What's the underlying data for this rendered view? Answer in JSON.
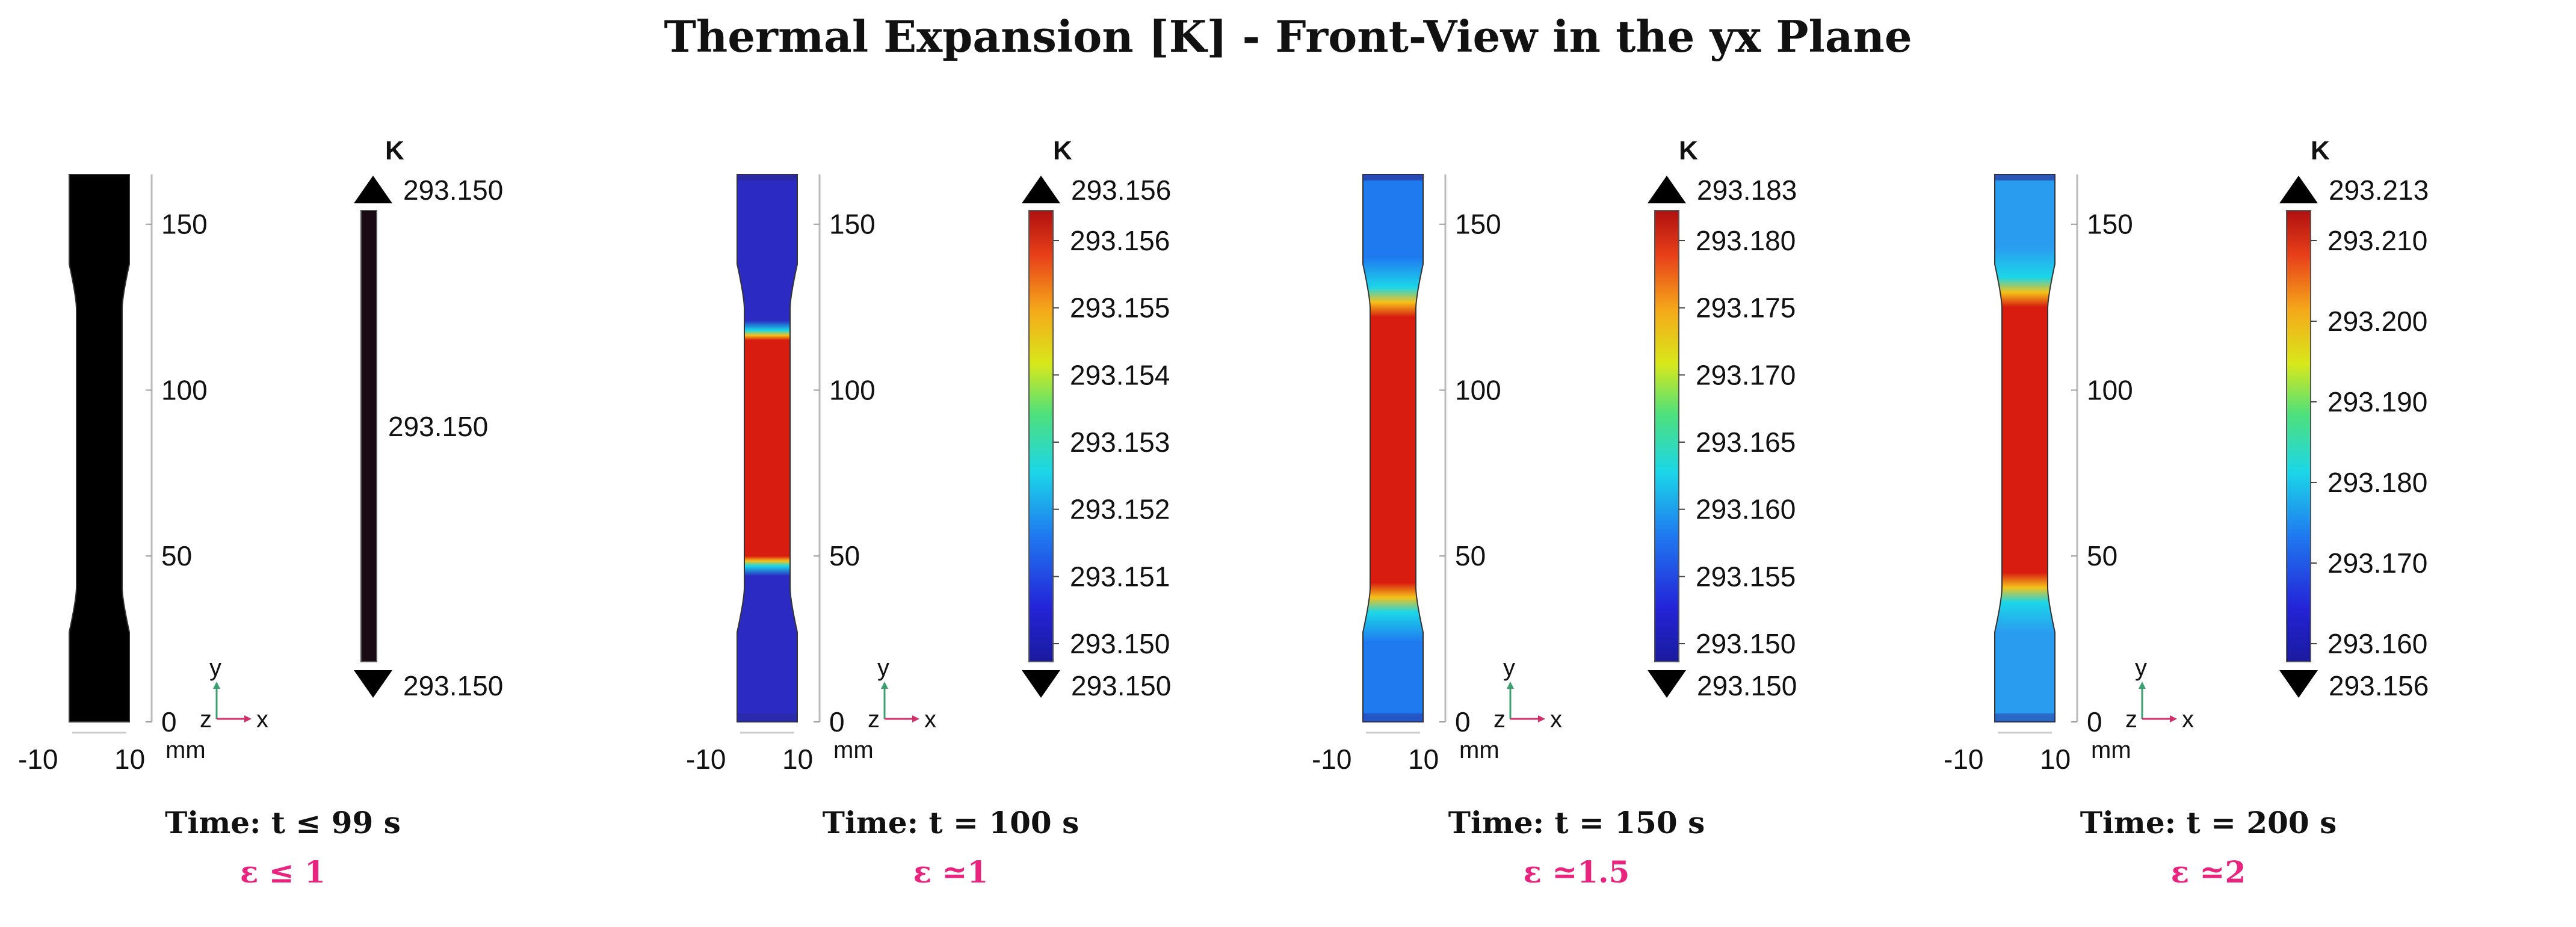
{
  "title": "Thermal Expansion [K] - Front-View in the yx Plane",
  "unit_label": "mm",
  "colorbar_unit": "K",
  "axis_labels": {
    "y": "y",
    "z": "z",
    "x": "x"
  },
  "chart_data": [
    {
      "type": "heatmap",
      "time_label": "Time: t ≤ 99 s",
      "strain_label": "ε ≤ 1",
      "x_ticks": [
        "-10",
        "10"
      ],
      "y_ticks": [
        "0",
        "50",
        "100",
        "150"
      ],
      "ylim": [
        0,
        165
      ],
      "colorbar_max_label": "293.150",
      "colorbar_min_label": "293.150",
      "colorbar_ticks": [
        "293.150"
      ],
      "uniform": true,
      "field": {
        "base": "#000000"
      }
    },
    {
      "type": "heatmap",
      "time_label": "Time: t = 100 s",
      "strain_label": "ε ≃1",
      "x_ticks": [
        "-10",
        "10"
      ],
      "y_ticks": [
        "0",
        "50",
        "100",
        "150"
      ],
      "ylim": [
        0,
        165
      ],
      "colorbar_max_label": "293.156",
      "colorbar_min_label": "293.150",
      "colorbar_ticks": [
        "293.156",
        "293.155",
        "293.154",
        "293.153",
        "293.152",
        "293.151",
        "293.150"
      ],
      "uniform": false,
      "field": {
        "base": "#2b2bc4",
        "hot": "#d81c10",
        "hot_range_mm": [
          50,
          115
        ],
        "transition_mm": 6
      }
    },
    {
      "type": "heatmap",
      "time_label": "Time: t = 150 s",
      "strain_label": "ε ≃1.5",
      "x_ticks": [
        "-10",
        "10"
      ],
      "y_ticks": [
        "0",
        "50",
        "100",
        "150"
      ],
      "ylim": [
        0,
        165
      ],
      "colorbar_max_label": "293.183",
      "colorbar_min_label": "293.150",
      "colorbar_ticks": [
        "293.180",
        "293.175",
        "293.170",
        "293.165",
        "293.160",
        "293.155",
        "293.150"
      ],
      "uniform": false,
      "field": {
        "base": "#1f7af0",
        "hot": "#d81c10",
        "hot_range_mm": [
          42,
          122
        ],
        "transition_mm": 18
      }
    },
    {
      "type": "heatmap",
      "time_label": "Time: t = 200 s",
      "strain_label": "ε ≃2",
      "x_ticks": [
        "-10",
        "10"
      ],
      "y_ticks": [
        "0",
        "50",
        "100",
        "150"
      ],
      "ylim": [
        0,
        165
      ],
      "colorbar_max_label": "293.213",
      "colorbar_min_label": "293.156",
      "colorbar_ticks": [
        "293.210",
        "293.200",
        "293.190",
        "293.180",
        "293.170",
        "293.160"
      ],
      "uniform": false,
      "field": {
        "base": "#2a9cf0",
        "hot": "#d81c10",
        "hot_range_mm": [
          45,
          125
        ],
        "transition_mm": 18
      }
    }
  ]
}
